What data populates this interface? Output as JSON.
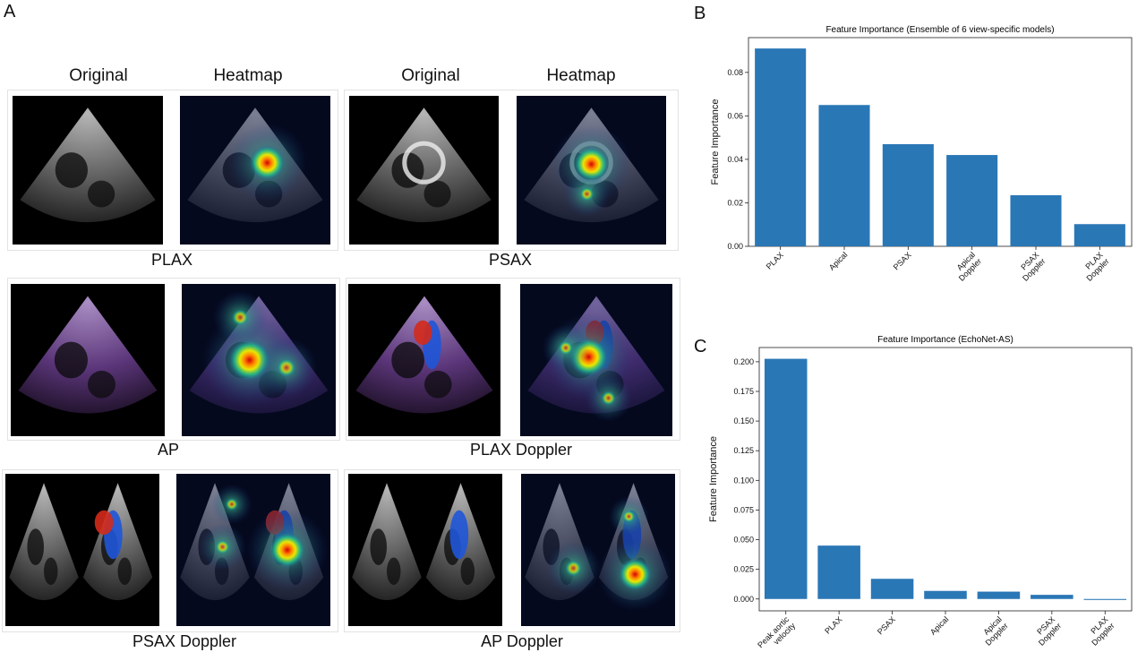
{
  "panel_a": {
    "letter": "A",
    "headers": [
      "Original",
      "Heatmap",
      "Original",
      "Heatmap"
    ],
    "views": [
      {
        "label": "PLAX",
        "style": "gray",
        "kind": "plax"
      },
      {
        "label": "PSAX",
        "style": "gray",
        "kind": "psax"
      },
      {
        "label": "AP",
        "style": "purple",
        "kind": "ap"
      },
      {
        "label": "PLAX Doppler",
        "style": "purple",
        "kind": "plaxd"
      },
      {
        "label": "PSAX Doppler",
        "style": "gray",
        "kind": "psaxd"
      },
      {
        "label": "AP Doppler",
        "style": "gray",
        "kind": "apd"
      }
    ]
  },
  "panel_b": {
    "letter": "B"
  },
  "panel_c": {
    "letter": "C"
  },
  "chart_data": [
    {
      "type": "bar",
      "title": "Feature Importance (Ensemble of 6 view-specific models)",
      "ylabel": "Feature Importance",
      "xlabel": "",
      "categories": [
        "PLAX",
        "Apical",
        "PSAX",
        "Apical\nDoppler",
        "PSAX\nDoppler",
        "PLAX\nDoppler"
      ],
      "values": [
        0.091,
        0.065,
        0.047,
        0.042,
        0.0235,
        0.0102
      ],
      "ylim": [
        0,
        0.096
      ],
      "yticks": [
        "0.00",
        "0.02",
        "0.04",
        "0.06",
        "0.08"
      ],
      "ytick_values": [
        0,
        0.02,
        0.04,
        0.06,
        0.08
      ],
      "bar_color": "#2a77b6"
    },
    {
      "type": "bar",
      "title": "Feature Importance (EchoNet-AS)",
      "ylabel": "Feature Importance",
      "xlabel": "",
      "categories": [
        "Peak aortic\nvelocity",
        "PLAX",
        "PSAX",
        "Apical",
        "Apical\nDoppler",
        "PSAX\nDoppler",
        "PLAX\nDoppler"
      ],
      "values": [
        0.2025,
        0.045,
        0.017,
        0.0068,
        0.0062,
        0.0035,
        -0.0008
      ],
      "ylim": [
        -0.01,
        0.212
      ],
      "yticks": [
        "0.000",
        "0.025",
        "0.050",
        "0.075",
        "0.100",
        "0.125",
        "0.150",
        "0.175",
        "0.200"
      ],
      "ytick_values": [
        0,
        0.025,
        0.05,
        0.075,
        0.1,
        0.125,
        0.15,
        0.175,
        0.2
      ],
      "bar_color": "#2a77b6"
    }
  ]
}
